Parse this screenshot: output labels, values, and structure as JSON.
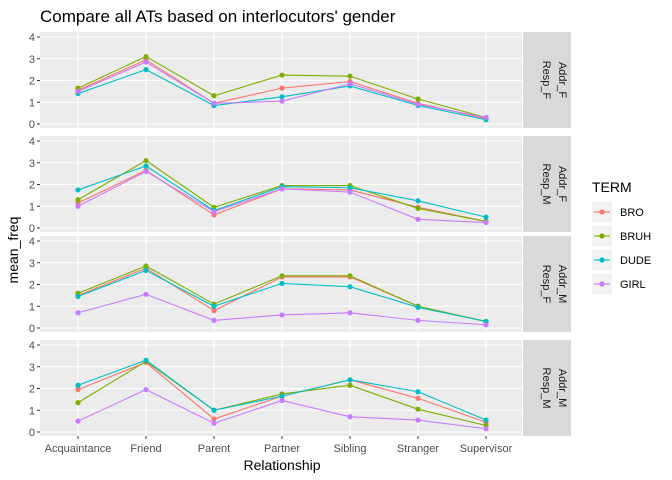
{
  "chart_data": {
    "type": "line",
    "title": "Compare all ATs based on interlocutors' gender",
    "xlabel": "Relationship",
    "ylabel": "mean_freq",
    "ylim": [
      0,
      4
    ],
    "yticks": [
      "0",
      "1",
      "2",
      "3",
      "4"
    ],
    "categories": [
      "Acquaintance",
      "Friend",
      "Parent",
      "Partner",
      "Sibling",
      "Stranger",
      "Supervisor"
    ],
    "legend": {
      "title": "TERM",
      "placement": "right",
      "entries": [
        {
          "name": "BRO",
          "color": "#F8766D"
        },
        {
          "name": "BRUH",
          "color": "#7CAE00"
        },
        {
          "name": "DUDE",
          "color": "#00BFC4"
        },
        {
          "name": "GIRL",
          "color": "#C77CFF"
        }
      ]
    },
    "grid": true,
    "panels": [
      {
        "addr": "Addr_F",
        "resp": "Resp_F",
        "series": [
          {
            "name": "BRO",
            "values": [
              1.55,
              2.95,
              0.95,
              1.65,
              1.95,
              0.95,
              0.25
            ]
          },
          {
            "name": "BRUH",
            "values": [
              1.65,
              3.1,
              1.3,
              2.25,
              2.2,
              1.15,
              0.3
            ]
          },
          {
            "name": "DUDE",
            "values": [
              1.4,
              2.5,
              0.85,
              1.25,
              1.75,
              0.85,
              0.2
            ]
          },
          {
            "name": "GIRL",
            "values": [
              1.5,
              2.85,
              0.95,
              1.05,
              1.85,
              0.9,
              0.3
            ]
          }
        ]
      },
      {
        "addr": "Addr_F",
        "resp": "Resp_M",
        "series": [
          {
            "name": "BRO",
            "values": [
              1.15,
              2.65,
              0.6,
              1.8,
              1.75,
              0.95,
              0.3
            ]
          },
          {
            "name": "BRUH",
            "values": [
              1.3,
              3.1,
              0.95,
              1.95,
              1.95,
              0.9,
              0.3
            ]
          },
          {
            "name": "DUDE",
            "values": [
              1.75,
              2.85,
              0.8,
              1.9,
              1.85,
              1.25,
              0.5
            ]
          },
          {
            "name": "GIRL",
            "values": [
              1.0,
              2.6,
              0.75,
              1.8,
              1.65,
              0.4,
              0.25
            ]
          }
        ]
      },
      {
        "addr": "Addr_M",
        "resp": "Resp_F",
        "series": [
          {
            "name": "BRO",
            "values": [
              1.5,
              2.75,
              0.8,
              2.35,
              2.35,
              1.0,
              0.3
            ]
          },
          {
            "name": "BRUH",
            "values": [
              1.6,
              2.85,
              1.1,
              2.4,
              2.4,
              1.0,
              0.3
            ]
          },
          {
            "name": "DUDE",
            "values": [
              1.45,
              2.65,
              1.0,
              2.05,
              1.9,
              0.95,
              0.3
            ]
          },
          {
            "name": "GIRL",
            "values": [
              0.7,
              1.55,
              0.35,
              0.6,
              0.7,
              0.35,
              0.15
            ]
          }
        ]
      },
      {
        "addr": "Addr_M",
        "resp": "Resp_M",
        "series": [
          {
            "name": "BRO",
            "values": [
              1.95,
              3.2,
              0.6,
              1.65,
              2.4,
              1.55,
              0.45
            ]
          },
          {
            "name": "BRUH",
            "values": [
              1.35,
              3.25,
              1.0,
              1.75,
              2.15,
              1.05,
              0.3
            ]
          },
          {
            "name": "DUDE",
            "values": [
              2.15,
              3.3,
              1.0,
              1.65,
              2.4,
              1.85,
              0.55
            ]
          },
          {
            "name": "GIRL",
            "values": [
              0.5,
              1.95,
              0.4,
              1.45,
              0.7,
              0.55,
              0.15
            ]
          }
        ]
      }
    ]
  }
}
